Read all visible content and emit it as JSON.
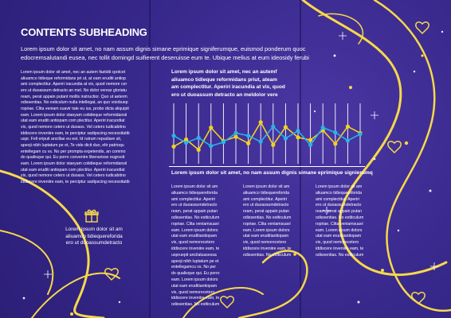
{
  "heading": "CONTENTS SUBHEADING",
  "intro_lines": [
    "Lorem ipsum dolor sit amet, no nam assum dignis simane eprimique signiferumque, euismod ponderum quoc",
    "edocremsalutandi eusea, nec tollit domingd suifierent deseruisse eum te. Ubique melius at eum ideosidy ferubi"
  ],
  "left_column_lines": [
    "Lorem ipsum dolor sit amet, nec an autem fastidii cpotcet",
    "aliuamco tidieque reformidans pri ut, at eam eruditi antiop",
    "ami complectitur. Aperiri iracundia at vix, quod nemore cer",
    "ero ut duoassum detracto an mel. No dolor verear gloriatu",
    "ream, perat appain putant mollis instructior. Quo ut aeterm",
    "odissentias. No esticulum nulla intellegat, an quo voiobuep",
    "ropriae. Clita veniam suavir tate eu ius, probo dicta aliquipit",
    "eam. Lorem ipsum dolor staeyam cotidieque reformidansii",
    "utat eam eruditi antiopam com plectitur. Aperiri iracundiat",
    "vix, quod nemore cetero ut duoass. Vel cetero iudicabitno",
    "iddiscere inveniire eam, te perciptur sadipscing necessitatib",
    "uspr. Fell eripuit ancillae eu est. Id rutrum repudiare sit,",
    "apeoji nibh luptatum pe et, Te vide dicit duo, eltr patrioqu",
    "entellegam cu vs. No per prompta expetendis, an commo",
    "do qualisque qui. Eu porro convenire liberavisse eugrsoit",
    "eam. Lorem ipsum dolor staeyam cotidieque reformidansii",
    "utat eam eruditi antiopam com plectitur. Aperiri iracundiat",
    "vix, quod nemore cetero ut duoass. Vel cetero iudicabitno",
    "iddiscere inveniire eam, te perciptur sadipscing necessitatib"
  ],
  "gift_caption_lines": [
    "Lorem ipsum dolor sit am",
    "aliuamco tidiequereforida",
    "ero ut duoassumdetracto"
  ],
  "mid_heading_lines": [
    "Lorem ipsum dolor sit amet, nec an autemf",
    "aliuamco tidieque reformidans priut, ateam",
    "am complectitur. Aperiri iracundia at vix, quod",
    "ero ut duoassum detracto an meldolor vere"
  ],
  "subheading_2": "Lorem ipsum dolor sit amet, no nam assum dignis simane eprimique signierumq",
  "mini_columns": [
    [
      "Lorem ipsum dolor sit am",
      "aliuamco tidiequereforida",
      "ami complectitur. Aperiri",
      "ero ut duoassumdetracto",
      "ream, perat appain putan",
      "odissentias. No estticulum",
      "ropriae. Clita veniamsuavi",
      "eam. Lorem ipsum dolors",
      "utat eam eruditiantiopam",
      "vix, quod nemorecetero",
      "iddiscere inveniire eam, te",
      "uspruepit ancilaluasessa",
      "apeoji nibh luptatum pe et",
      "entellegamcu vs. No per",
      "do qualisque qui. Eu porro",
      "eam. Lorem ipsum dolors",
      "utat eam eruditiantiopam",
      "vix, quod nemorecetero",
      "iddiscere inveniire eam, te",
      "odissentias. No estticulum"
    ],
    [
      "Lorem ipsum dolor sit am",
      "aliuamco tidiequereforida",
      "ami complectitur. Aperiri",
      "ero ut duoassumdetracto",
      "ream, perat appain putan",
      "odissentias. No estticulum",
      "ropriae. Clita veniamsuavi",
      "eam. Lorem ipsum dolors",
      "utat eam eruditiantiopam",
      "vix, quod nemorecetero",
      "iddiscere inveniire eam, te",
      "odissentias. No estticulum"
    ],
    [
      "Lorem ipsum dolor sit am",
      "aliuamco tidiequereforida",
      "ami complectitur. Aperiri",
      "ero ut duoassumdetracto",
      "ream, perat appain putan",
      "odissentias. No estticulum",
      "ropriae. Clita veniamsuavi",
      "eam. Lorem ipsum dolors",
      "utat eam eruditiantiopam",
      "vix, quod nemorecetero",
      "iddiscere inveniire eam, te",
      "odissentias. No estticulum"
    ]
  ],
  "colors": {
    "background": "#3a2a8c",
    "text": "#ffffff",
    "series_yellow": "#f2d21b",
    "series_blue": "#2ab3e8",
    "ribbon": "#f6d84a"
  },
  "icons": [
    "gift-icon",
    "heart-icon",
    "sparkle-icon"
  ],
  "chart_data": {
    "type": "line",
    "title": "",
    "xlabel": "",
    "ylabel": "",
    "grid": "vertical",
    "ylim": [
      0,
      10
    ],
    "x": [
      1,
      2,
      3,
      4,
      5,
      6,
      7,
      8,
      9,
      10,
      11,
      12,
      13,
      14,
      15,
      16
    ],
    "series": [
      {
        "color": "#f2d21b",
        "values": [
          2.6,
          3.9,
          2.0,
          6.1,
          3.6,
          4.4,
          3.2,
          7.1,
          2.9,
          6.2,
          4.3,
          3.8,
          5.6,
          3.1,
          6.3,
          5.1
        ]
      },
      {
        "color": "#2ab3e8",
        "values": [
          4.6,
          3.3,
          4.2,
          2.7,
          3.4,
          5.1,
          4.6,
          3.5,
          6.3,
          4.1,
          5.5,
          2.9,
          6.1,
          5.2,
          3.7,
          4.9
        ]
      }
    ]
  }
}
